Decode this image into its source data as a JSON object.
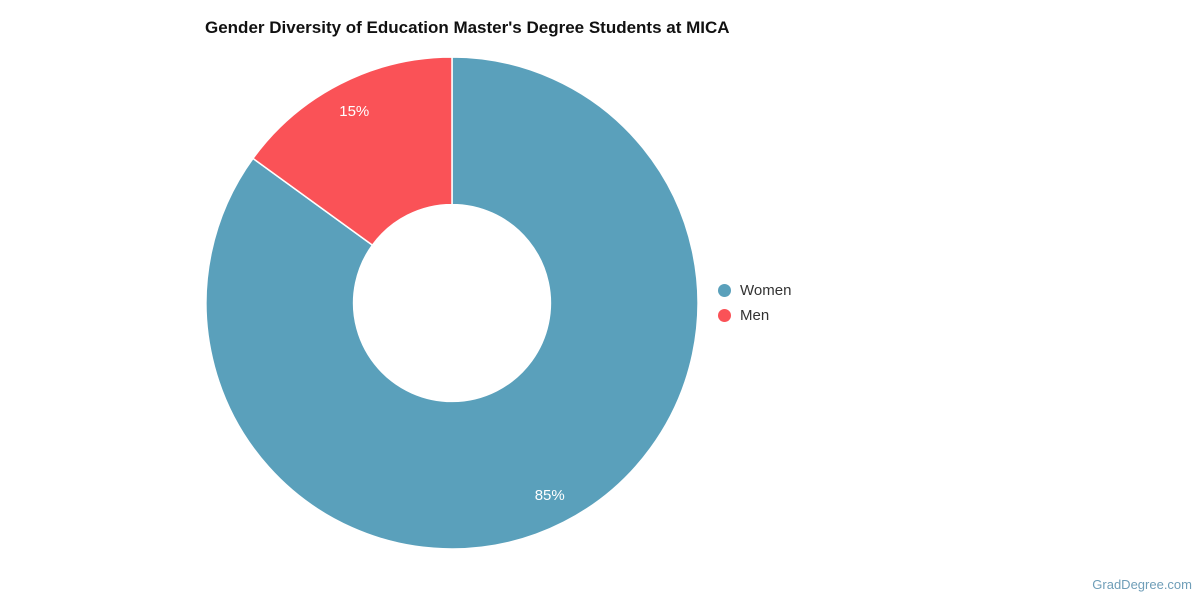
{
  "chart_data": {
    "type": "pie",
    "subtype": "donut",
    "title": "Gender Diversity of Education Master's Degree Students at MICA",
    "categories": [
      "Women",
      "Men"
    ],
    "values": [
      85,
      15
    ],
    "data_labels": [
      "85%",
      "15%"
    ],
    "colors": [
      "#5AA0BB",
      "#FA5257"
    ],
    "legend_position": "right",
    "start_angle_deg": 0,
    "direction": "clockwise",
    "inner_radius_ratio": 0.4
  },
  "watermark": {
    "text": "GradDegree.com",
    "color": "#6F9EB8"
  }
}
